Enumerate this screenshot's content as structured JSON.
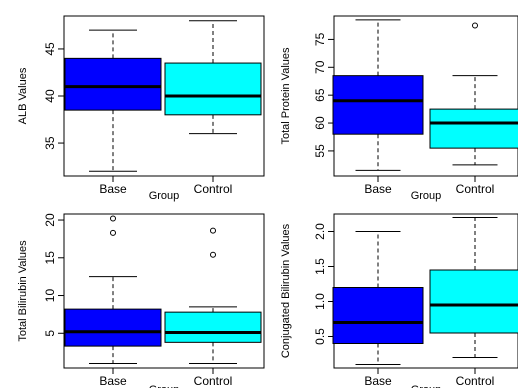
{
  "colors": {
    "base": "#0000ff",
    "control": "#00ffff",
    "stroke": "#000000"
  },
  "chart_data": [
    {
      "type": "box",
      "xlabel": "Group",
      "ylabel": "ALB Values",
      "categories": [
        "Base",
        "Control"
      ],
      "yticks": [
        35,
        40,
        45
      ],
      "ylim": [
        31.5,
        48.5
      ],
      "boxes": [
        {
          "name": "Base",
          "whisker_low": 32,
          "q1": 38.5,
          "median": 41,
          "q3": 44,
          "whisker_high": 47,
          "outliers": []
        },
        {
          "name": "Control",
          "whisker_low": 36,
          "q1": 38,
          "median": 40,
          "q3": 43.5,
          "whisker_high": 48,
          "outliers": []
        }
      ]
    },
    {
      "type": "box",
      "xlabel": "Group",
      "ylabel": "Total Protein Values",
      "categories": [
        "Base",
        "Control"
      ],
      "yticks": [
        55,
        60,
        65,
        70,
        75
      ],
      "ylim": [
        50.5,
        79.2
      ],
      "boxes": [
        {
          "name": "Base",
          "whisker_low": 51.5,
          "q1": 58,
          "median": 64,
          "q3": 68.5,
          "whisker_high": 78.5,
          "outliers": []
        },
        {
          "name": "Control",
          "whisker_low": 52.5,
          "q1": 55.5,
          "median": 60,
          "q3": 62.5,
          "whisker_high": 68.5,
          "outliers": [
            77.5
          ]
        }
      ]
    },
    {
      "type": "box",
      "xlabel": "Group",
      "ylabel": "Total Bilirubin Values",
      "categories": [
        "Base",
        "Control"
      ],
      "yticks": [
        5,
        10,
        15,
        20
      ],
      "ylim": [
        0.4,
        20.8
      ],
      "boxes": [
        {
          "name": "Base",
          "whisker_low": 1,
          "q1": 3.3,
          "median": 5.2,
          "q3": 8.2,
          "whisker_high": 12.5,
          "outliers": [
            18.3,
            20.2
          ]
        },
        {
          "name": "Control",
          "whisker_low": 1,
          "q1": 3.8,
          "median": 5.1,
          "q3": 7.8,
          "whisker_high": 8.5,
          "outliers": [
            15.4,
            18.6
          ]
        }
      ]
    },
    {
      "type": "box",
      "xlabel": "Group",
      "ylabel": "Conjugated Bilirubin Values",
      "categories": [
        "Base",
        "Control"
      ],
      "yticks": [
        0.5,
        1.0,
        1.5,
        2.0
      ],
      "yticklabels": [
        "0.5",
        "1.0",
        "1.5",
        "2.0"
      ],
      "ylim": [
        0.05,
        2.25
      ],
      "boxes": [
        {
          "name": "Base",
          "whisker_low": 0.1,
          "q1": 0.4,
          "median": 0.7,
          "q3": 1.2,
          "whisker_high": 2.0,
          "outliers": []
        },
        {
          "name": "Control",
          "whisker_low": 0.2,
          "q1": 0.55,
          "median": 0.95,
          "q3": 1.45,
          "whisker_high": 2.2,
          "outliers": []
        }
      ]
    }
  ]
}
